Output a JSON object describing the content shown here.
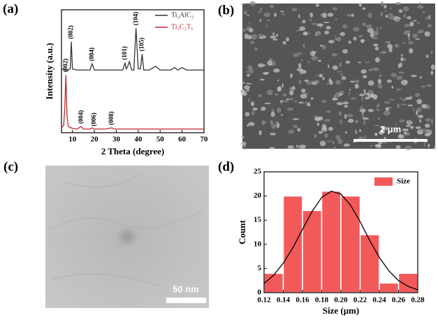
{
  "panel_labels": [
    "(a)",
    "(b)",
    "(c)",
    "(d)"
  ],
  "images": [
    {
      "scale_bar": "2 μm"
    },
    {
      "scale_bar": "50 nm"
    }
  ],
  "chart_data": [
    {
      "type": "line",
      "xlabel": "2 Theta (degree)",
      "ylabel": "Intensity (a.u.)",
      "xlim": [
        5,
        70
      ],
      "xticks": [
        10,
        20,
        30,
        40,
        50,
        60,
        70
      ],
      "ylim": [
        0,
        100
      ],
      "x": [
        5,
        6,
        6.5,
        7,
        7.5,
        8,
        9,
        9.5,
        10,
        12,
        14,
        15,
        18,
        19,
        20,
        25,
        28,
        29,
        33,
        34,
        34.5,
        35,
        36,
        37,
        38,
        39,
        40,
        41,
        41.8,
        42.5,
        45,
        48,
        50,
        55,
        56.5,
        58,
        60,
        62,
        65,
        70
      ],
      "series": [
        {
          "name": "Ti₃AlC₂",
          "color": "#333333",
          "values": [
            52,
            51.5,
            51,
            51,
            51,
            51,
            52,
            74,
            52,
            51,
            51,
            51,
            51,
            56,
            51,
            51,
            51,
            51,
            51,
            57,
            52,
            53,
            58,
            51,
            51,
            85,
            52,
            52,
            64,
            51,
            51,
            54,
            51,
            51,
            53,
            51,
            53,
            51,
            51,
            51
          ],
          "annotations": [
            {
              "text": "(002)",
              "x": 9.5
            },
            {
              "text": "(004)",
              "x": 19
            },
            {
              "text": "(101)",
              "x": 34
            },
            {
              "text": "(104)",
              "x": 39
            },
            {
              "text": "(105)",
              "x": 41.8
            }
          ]
        },
        {
          "name": "Ti₃C₂Tₓ",
          "color": "#c0282d",
          "values": [
            4,
            6,
            20,
            47,
            15,
            6,
            4,
            4,
            3.5,
            3,
            5,
            3,
            3,
            4,
            3,
            3,
            4,
            3,
            3,
            3,
            3,
            3,
            3,
            3,
            3,
            3,
            3,
            3,
            3,
            3,
            3,
            3,
            3,
            3,
            3,
            3,
            3,
            3,
            3,
            3
          ],
          "annotations": [
            {
              "text": "(002)",
              "x": 7
            },
            {
              "text": "(004)",
              "x": 14
            },
            {
              "text": "(006)",
              "x": 20
            },
            {
              "text": "(008)",
              "x": 28
            }
          ]
        }
      ]
    },
    {
      "type": "histogram",
      "xlabel": "Size (μm)",
      "ylabel": "Count",
      "bins": [
        0.12,
        0.14,
        0.16,
        0.18,
        0.2,
        0.22,
        0.24,
        0.26,
        0.28
      ],
      "series": [
        {
          "name": "Size",
          "color": "#f25a5a",
          "values": [
            4,
            20,
            17,
            21,
            20,
            12,
            2,
            4
          ]
        }
      ],
      "fit": {
        "color": "#000000",
        "x": [
          0.12,
          0.13,
          0.14,
          0.15,
          0.16,
          0.17,
          0.18,
          0.19,
          0.2,
          0.21,
          0.22,
          0.23,
          0.24,
          0.25,
          0.26,
          0.27,
          0.28
        ],
        "values": [
          1.9,
          3.6,
          6.1,
          9.3,
          13.1,
          16.8,
          19.7,
          21.0,
          20.4,
          18.1,
          14.7,
          10.8,
          7.3,
          4.5,
          2.5,
          1.3,
          0.6
        ]
      },
      "xlim": [
        0.12,
        0.28
      ],
      "xticks": [
        0.12,
        0.14,
        0.16,
        0.18,
        {
          "value": 0.2,
          "label": "0.20"
        },
        0.22,
        0.24,
        0.26,
        0.28
      ],
      "ylim": [
        0,
        25
      ],
      "yticks": [
        0,
        5,
        10,
        15,
        20,
        25
      ]
    }
  ]
}
